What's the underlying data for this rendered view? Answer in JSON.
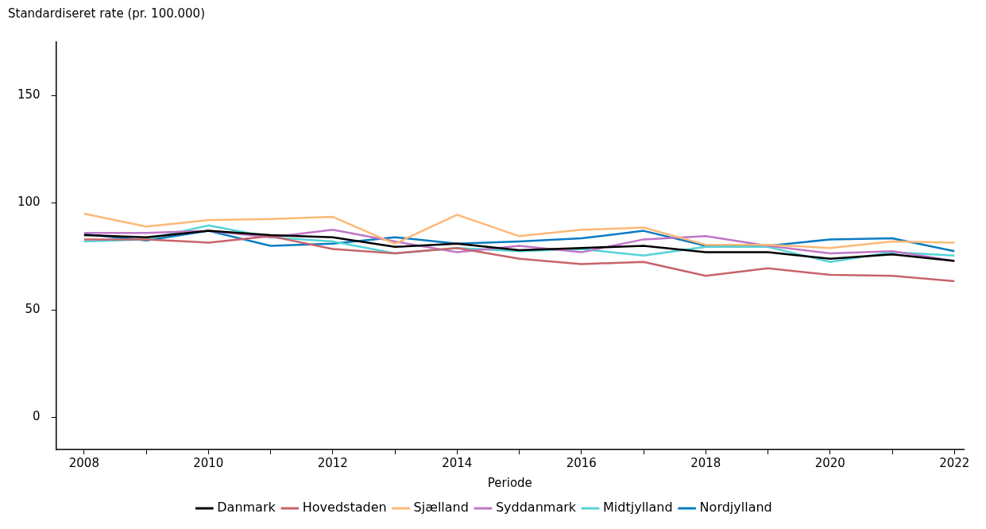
{
  "chart_data": {
    "type": "line",
    "ylabel": "Standardiseret rate (pr. 100.000)",
    "xlabel": "Periode",
    "x": [
      2008,
      2009,
      2010,
      2011,
      2012,
      2013,
      2014,
      2015,
      2016,
      2017,
      2018,
      2019,
      2020,
      2021,
      2022
    ],
    "series": [
      {
        "name": "Danmark",
        "color": "#000000",
        "values": [
          85,
          84,
          87,
          85,
          84,
          79.5,
          81,
          78,
          79,
          80,
          77,
          77,
          74,
          76,
          73
        ]
      },
      {
        "name": "Hovedstaden",
        "color": "#c8636b",
        "values": [
          83,
          83,
          81.5,
          84.5,
          78.5,
          76.5,
          79,
          74,
          71.5,
          72.5,
          66,
          69.5,
          66.5,
          66,
          63.5
        ]
      },
      {
        "name": "Sjælland",
        "color": "#fdb877",
        "values": [
          95,
          89,
          92,
          92.5,
          93.5,
          81,
          94.5,
          84.5,
          87.5,
          88.5,
          80.5,
          80.5,
          79,
          82,
          81.5
        ]
      },
      {
        "name": "Syddanmark",
        "color": "#bf76c6",
        "values": [
          86,
          86,
          87,
          84,
          87.5,
          82,
          77,
          80,
          77,
          83,
          84.5,
          80,
          76.5,
          77.5,
          73
        ]
      },
      {
        "name": "Midtjylland",
        "color": "#55d3d6",
        "values": [
          82,
          83,
          89.5,
          84,
          82,
          76.5,
          79,
          77.5,
          78.5,
          75.5,
          79.5,
          79.5,
          72.5,
          77,
          75.5
        ]
      },
      {
        "name": "Nordjylland",
        "color": "#0b7bc1",
        "values": [
          85.5,
          82.5,
          87,
          80,
          81,
          84,
          81,
          82,
          83.5,
          87,
          80,
          80,
          83,
          83.5,
          77.5
        ]
      }
    ],
    "xlim": [
      2007.55,
      2022.15
    ],
    "xticks": [
      2008,
      {
        "value": 2009,
        "label": null
      },
      2010,
      {
        "value": 2011,
        "label": null
      },
      2012,
      {
        "value": 2013,
        "label": null
      },
      2014,
      {
        "value": 2015,
        "label": null
      },
      2016,
      {
        "value": 2017,
        "label": null
      },
      2018,
      {
        "value": 2019,
        "label": null
      },
      2020,
      {
        "value": 2021,
        "label": null
      },
      2022
    ],
    "ylim": [
      -15,
      175
    ],
    "yticks": [
      0,
      50,
      100,
      150
    ],
    "grid": false,
    "legend": "bottom",
    "marker": "none",
    "line_style": "solid"
  }
}
